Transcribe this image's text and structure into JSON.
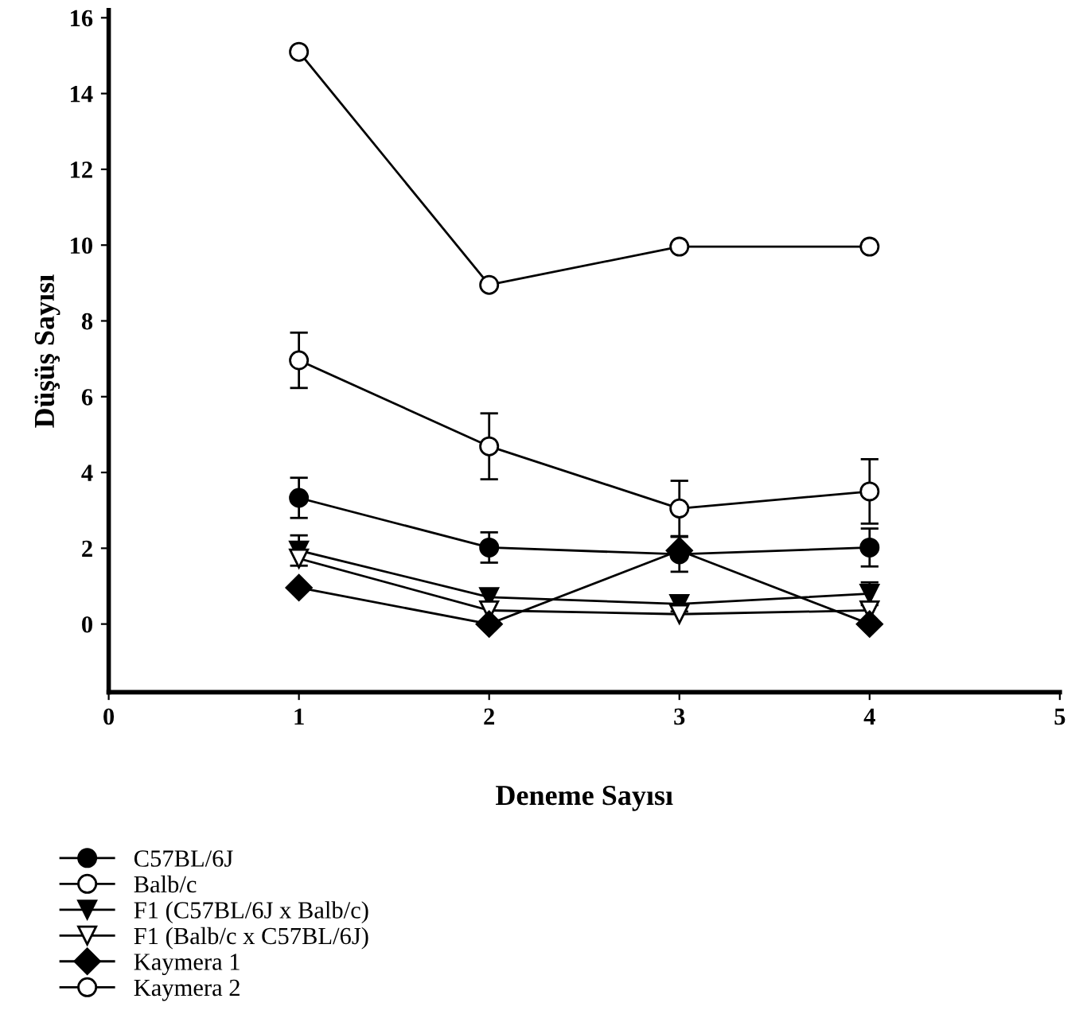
{
  "chart_data": {
    "type": "line",
    "xlabel": "Deneme Sayısı",
    "ylabel": "Düşüş Sayısı",
    "x": [
      1,
      2,
      3,
      4
    ],
    "xlim": [
      0,
      5
    ],
    "xticks": [
      0,
      1,
      2,
      3,
      4,
      5
    ],
    "ylim": [
      -1.8,
      16.2
    ],
    "yticks": [
      0,
      2,
      4,
      6,
      8,
      10,
      12,
      14,
      16
    ],
    "grid": false,
    "legend": "bottom",
    "line_style": "solid",
    "series": [
      {
        "name": "C57BL/6J",
        "color": "#000000",
        "marker": "circle",
        "values": [
          3.33,
          2.02,
          1.84,
          2.02
        ],
        "errors": [
          0.53,
          0.4,
          0.46,
          0.5
        ]
      },
      {
        "name": "Balb/c",
        "color": "#ffffff",
        "marker": "circle",
        "values": [
          6.96,
          4.69,
          3.05,
          3.5
        ],
        "errors": [
          0.73,
          0.87,
          0.73,
          0.85
        ]
      },
      {
        "name": "F1 (C57BL/6J x Balb/c)",
        "color": "#000000",
        "marker": "triangle",
        "values": [
          1.94,
          0.71,
          0.53,
          0.8
        ],
        "errors": [
          0.4,
          null,
          0.2,
          0.3
        ]
      },
      {
        "name": "F1 (Balb/c x C57BL/6J)",
        "color": "#ffffff",
        "marker": "triangle",
        "values": [
          1.73,
          0.36,
          0.26,
          0.36
        ]
      },
      {
        "name": "Kaymera 1",
        "color": "#000000",
        "marker": "diamond",
        "values": [
          0.96,
          0.0,
          1.94,
          0.0
        ]
      },
      {
        "name": "Kaymera 2",
        "color": "#ffffff",
        "marker": "circle",
        "values": [
          15.1,
          8.95,
          9.96,
          9.96
        ]
      }
    ]
  }
}
